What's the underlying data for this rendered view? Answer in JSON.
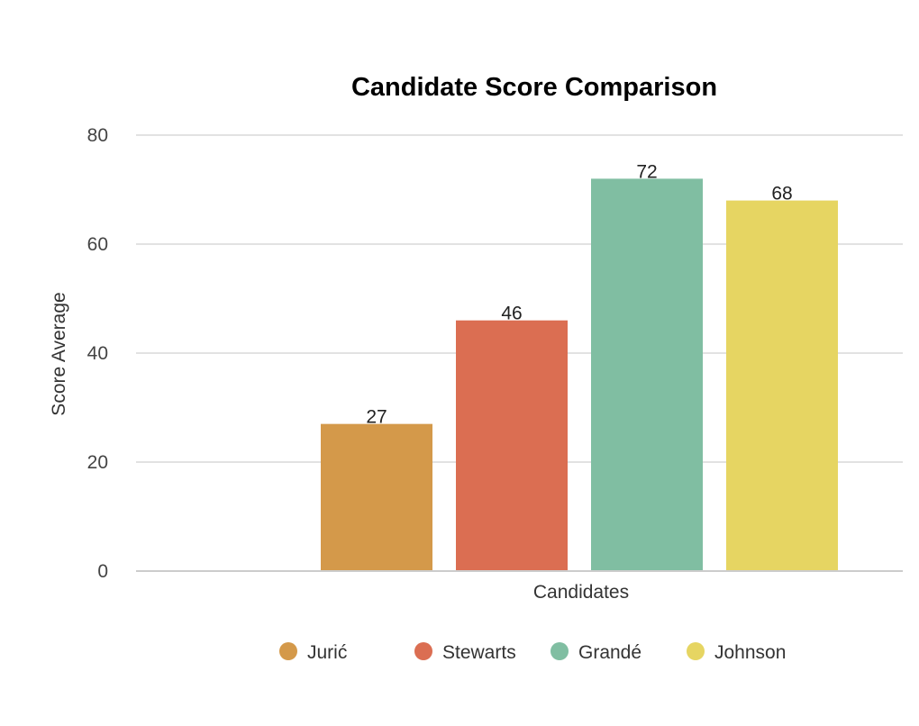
{
  "chart_data": {
    "type": "bar",
    "title": "Candidate Score Comparison",
    "xlabel": "Candidates",
    "ylabel": "Score Average",
    "ylim": [
      0,
      80
    ],
    "yticks": [
      0,
      20,
      40,
      60,
      80
    ],
    "grid": true,
    "legend_position": "bottom",
    "series": [
      {
        "name": "Jurić",
        "value": 27,
        "color": "#D4994A"
      },
      {
        "name": "Stewarts",
        "value": 46,
        "color": "#DB6E52"
      },
      {
        "name": "Grandé",
        "value": 72,
        "color": "#80BEA2"
      },
      {
        "name": "Johnson",
        "value": 68,
        "color": "#E6D562"
      }
    ]
  }
}
